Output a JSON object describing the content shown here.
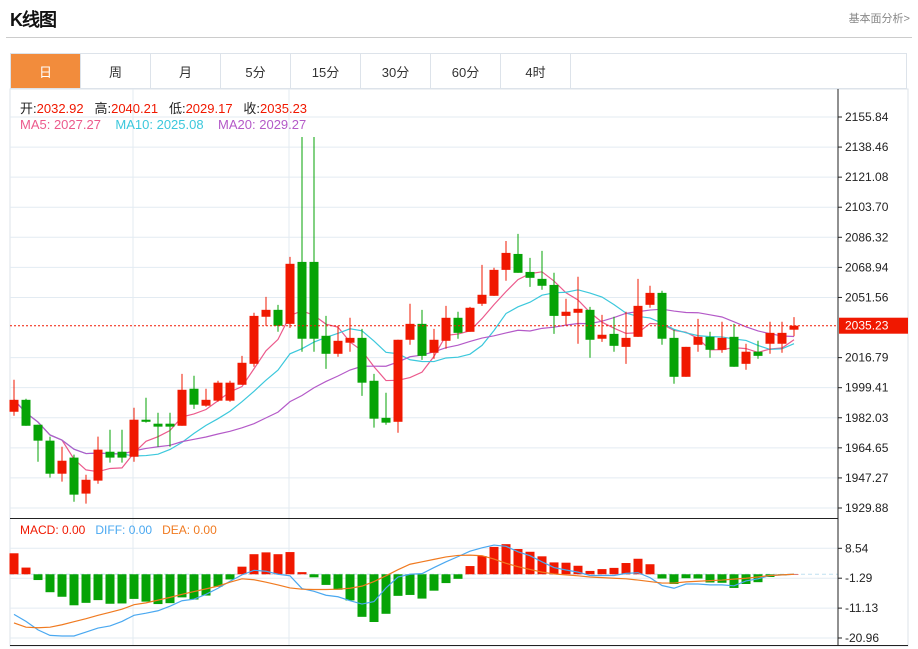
{
  "header": {
    "title": "K线图",
    "link": "基本面分析>"
  },
  "tabs": [
    {
      "label": "日",
      "active": true
    },
    {
      "label": "周"
    },
    {
      "label": "月"
    },
    {
      "label": "5分"
    },
    {
      "label": "15分"
    },
    {
      "label": "30分"
    },
    {
      "label": "60分"
    },
    {
      "label": "4时"
    }
  ],
  "info": {
    "open_label": "开:",
    "open": "2032.92",
    "high_label": "高:",
    "high": "2040.21",
    "low_label": "低:",
    "low": "2029.17",
    "close_label": "收:",
    "close": "2035.23",
    "ma5": "MA5: 2027.27",
    "ma10": "MA10: 2025.08",
    "ma20": "MA20: 2029.27"
  },
  "macd_info": {
    "macd": "MACD: 0.00",
    "diff": "DIFF: 0.00",
    "dea": "DEA: 0.00"
  },
  "colors": {
    "up": "#f01800",
    "down": "#06a306",
    "ma5": "#ec5a8c",
    "ma10": "#3cc8dc",
    "ma20": "#b45ac8",
    "diff": "#4aa8f0",
    "dea": "#f07a20",
    "accent": "#f28c3c"
  },
  "chart_data": {
    "type": "candlestick",
    "price_axis": {
      "ticks": [
        "2155.84",
        "2138.46",
        "2121.08",
        "2103.70",
        "2086.32",
        "2068.94",
        "2051.56",
        "2016.79",
        "1999.41",
        "1982.03",
        "1964.65",
        "1947.27",
        "1929.88"
      ],
      "range": [
        1929.88,
        2155.84
      ]
    },
    "last_price": "2035.23",
    "ohlc": [
      [
        1985.5,
        2004.0,
        1983.2,
        1992.4
      ],
      [
        1992.4,
        1993.0,
        1977.4,
        1977.4
      ],
      [
        1978.0,
        1978.0,
        1956.6,
        1968.8
      ],
      [
        1968.8,
        1971.1,
        1947.4,
        1949.7
      ],
      [
        1949.7,
        1965.3,
        1945.1,
        1957.2
      ],
      [
        1959.0,
        1960.7,
        1933.5,
        1937.6
      ],
      [
        1938.2,
        1949.1,
        1932.4,
        1946.2
      ],
      [
        1945.7,
        1971.1,
        1943.9,
        1963.6
      ],
      [
        1962.4,
        1975.1,
        1956.1,
        1959.0
      ],
      [
        1962.4,
        1975.1,
        1956.1,
        1959.0
      ],
      [
        1959.5,
        1987.8,
        1956.6,
        1980.9
      ],
      [
        1980.9,
        1993.6,
        1979.2,
        1979.7
      ],
      [
        1978.6,
        1984.9,
        1965.3,
        1976.9
      ],
      [
        1978.6,
        1984.9,
        1965.3,
        1976.9
      ],
      [
        1977.4,
        2007.4,
        1977.4,
        1998.2
      ],
      [
        1998.8,
        2006.3,
        1987.2,
        1989.6
      ],
      [
        1989.0,
        1998.8,
        1988.4,
        1992.4
      ],
      [
        1991.9,
        2003.4,
        1991.3,
        2002.3
      ],
      [
        1991.9,
        2003.4,
        1991.3,
        2002.3
      ],
      [
        2001.1,
        2017.8,
        2001.1,
        2013.8
      ],
      [
        2013.2,
        2042.7,
        2011.5,
        2040.9
      ],
      [
        2040.4,
        2051.9,
        2035.2,
        2044.4
      ],
      [
        2044.4,
        2047.3,
        2031.7,
        2035.2
      ],
      [
        2036.3,
        2075.0,
        2034.0,
        2071.0
      ],
      [
        2072.1,
        2144.3,
        2020.2,
        2027.7
      ],
      [
        2072.1,
        2144.3,
        2020.2,
        2027.7
      ],
      [
        2029.4,
        2040.9,
        2010.3,
        2019.0
      ],
      [
        2019.0,
        2035.2,
        2017.3,
        2026.5
      ],
      [
        2025.4,
        2039.8,
        2020.2,
        2028.2
      ],
      [
        2028.2,
        2033.4,
        1994.7,
        2002.3
      ],
      [
        2003.4,
        2007.4,
        1976.3,
        1981.5
      ],
      [
        1982.0,
        1996.5,
        1978.0,
        1979.2
      ],
      [
        1979.7,
        2027.1,
        1973.4,
        2027.1
      ],
      [
        2027.1,
        2047.9,
        2024.2,
        2036.3
      ],
      [
        2036.3,
        2044.4,
        2015.5,
        2017.8
      ],
      [
        2019.6,
        2033.4,
        2016.1,
        2027.1
      ],
      [
        2026.5,
        2046.7,
        2021.9,
        2039.8
      ],
      [
        2039.8,
        2043.3,
        2027.7,
        2031.1
      ],
      [
        2031.7,
        2046.1,
        2031.7,
        2045.6
      ],
      [
        2047.9,
        2070.4,
        2046.7,
        2053.1
      ],
      [
        2052.5,
        2068.7,
        2052.5,
        2067.5
      ],
      [
        2067.5,
        2084.2,
        2061.2,
        2077.3
      ],
      [
        2076.7,
        2088.3,
        2065.8,
        2065.8
      ],
      [
        2066.3,
        2074.4,
        2057.7,
        2062.9
      ],
      [
        2062.3,
        2078.5,
        2056.0,
        2058.3
      ],
      [
        2058.8,
        2065.8,
        2030.5,
        2040.9
      ],
      [
        2040.9,
        2050.8,
        2035.7,
        2043.3
      ],
      [
        2042.7,
        2063.5,
        2024.8,
        2045.0
      ],
      [
        2044.4,
        2046.1,
        2016.7,
        2027.1
      ],
      [
        2027.7,
        2041.5,
        2025.9,
        2030.0
      ],
      [
        2030.5,
        2040.4,
        2020.2,
        2023.6
      ],
      [
        2023.0,
        2043.3,
        2013.2,
        2028.2
      ],
      [
        2028.8,
        2062.3,
        2028.8,
        2046.7
      ],
      [
        2047.3,
        2058.3,
        2045.6,
        2054.2
      ],
      [
        2054.2,
        2055.4,
        2024.2,
        2027.7
      ],
      [
        2028.2,
        2032.9,
        2001.7,
        2005.7
      ],
      [
        2005.7,
        2023.0,
        2005.7,
        2023.0
      ],
      [
        2024.2,
        2039.2,
        2020.2,
        2028.8
      ],
      [
        2028.8,
        2031.7,
        2016.7,
        2021.3
      ],
      [
        2021.3,
        2037.5,
        2019.6,
        2028.2
      ],
      [
        2028.8,
        2036.3,
        2011.5,
        2011.5
      ],
      [
        2013.2,
        2024.8,
        2009.8,
        2020.2
      ],
      [
        2020.2,
        2026.5,
        2016.1,
        2017.8
      ],
      [
        2024.8,
        2037.5,
        2019.0,
        2031.1
      ],
      [
        2024.8,
        2037.5,
        2019.6,
        2031.1
      ],
      [
        2032.92,
        2040.21,
        2029.17,
        2035.23
      ]
    ],
    "macd_axis": {
      "ticks": [
        "8.54",
        "-1.29",
        "-11.13",
        "-20.96"
      ],
      "range": [
        -20.96,
        8.54
      ]
    },
    "macd_hist": [
      6.9,
      2.2,
      -1.9,
      -5.9,
      -7.4,
      -10.2,
      -9.4,
      -8.5,
      -9.7,
      -9.6,
      -8.1,
      -9.0,
      -9.8,
      -9.5,
      -7.6,
      -8.3,
      -7.0,
      -4.1,
      -1.7,
      2.5,
      6.6,
      7.2,
      6.6,
      7.3,
      0.7,
      -1.0,
      -3.5,
      -5.1,
      -8.6,
      -14.0,
      -15.7,
      -13.0,
      -7.1,
      -6.8,
      -8.0,
      -5.4,
      -2.9,
      -1.5,
      2.7,
      6.0,
      9.0,
      9.9,
      8.3,
      7.4,
      5.9,
      3.9,
      3.8,
      2.8,
      1.1,
      1.7,
      2.1,
      3.7,
      5.1,
      3.3,
      -1.4,
      -3.2,
      -1.3,
      -1.4,
      -2.7,
      -2.8,
      -4.5,
      -3.2,
      -2.6,
      -0.9,
      -0.4,
      0.0
    ],
    "diff": [
      -13.2,
      -15.5,
      -18.3,
      -20.1,
      -20.3,
      -20.3,
      -19.0,
      -17.7,
      -17.0,
      -15.5,
      -13.5,
      -12.8,
      -12.0,
      -10.5,
      -8.7,
      -8.2,
      -6.6,
      -4.6,
      -2.3,
      -0.2,
      1.3,
      1.0,
      0.0,
      -0.5,
      -4.7,
      -5.6,
      -6.9,
      -7.4,
      -8.7,
      -9.8,
      -9.0,
      -4.5,
      -0.9,
      0.0,
      0.2,
      2.2,
      4.1,
      5.8,
      7.6,
      8.7,
      9.6,
      9.2,
      7.4,
      6.1,
      4.1,
      2.2,
      1.4,
      0.7,
      -0.4,
      -0.4,
      -0.4,
      0.3,
      0.5,
      -1.1,
      -3.7,
      -4.6,
      -3.2,
      -3.2,
      -3.5,
      -3.5,
      -3.8,
      -2.2,
      -1.5,
      -0.4,
      -0.2,
      0.0
    ],
    "dea": [
      -16.0,
      -17.4,
      -17.6,
      -17.4,
      -16.6,
      -15.6,
      -14.6,
      -13.5,
      -12.5,
      -11.5,
      -10.0,
      -9.4,
      -8.5,
      -7.6,
      -6.6,
      -5.7,
      -4.8,
      -3.9,
      -2.6,
      -1.5,
      -1.8,
      -2.6,
      -3.5,
      -4.5,
      -4.9,
      -5.0,
      -5.0,
      -4.9,
      -4.6,
      -3.9,
      -2.4,
      -0.5,
      1.5,
      3.3,
      4.1,
      4.9,
      5.7,
      6.2,
      6.3,
      6.1,
      5.0,
      3.6,
      2.5,
      1.6,
      0.7,
      0.1,
      -0.2,
      -0.5,
      -0.9,
      -1.1,
      -1.3,
      -1.5,
      -1.9,
      -2.4,
      -2.9,
      -2.9,
      -2.5,
      -2.3,
      -2.1,
      -1.9,
      -1.6,
      -1.3,
      -0.9,
      -0.4,
      -0.2,
      0.0
    ]
  }
}
